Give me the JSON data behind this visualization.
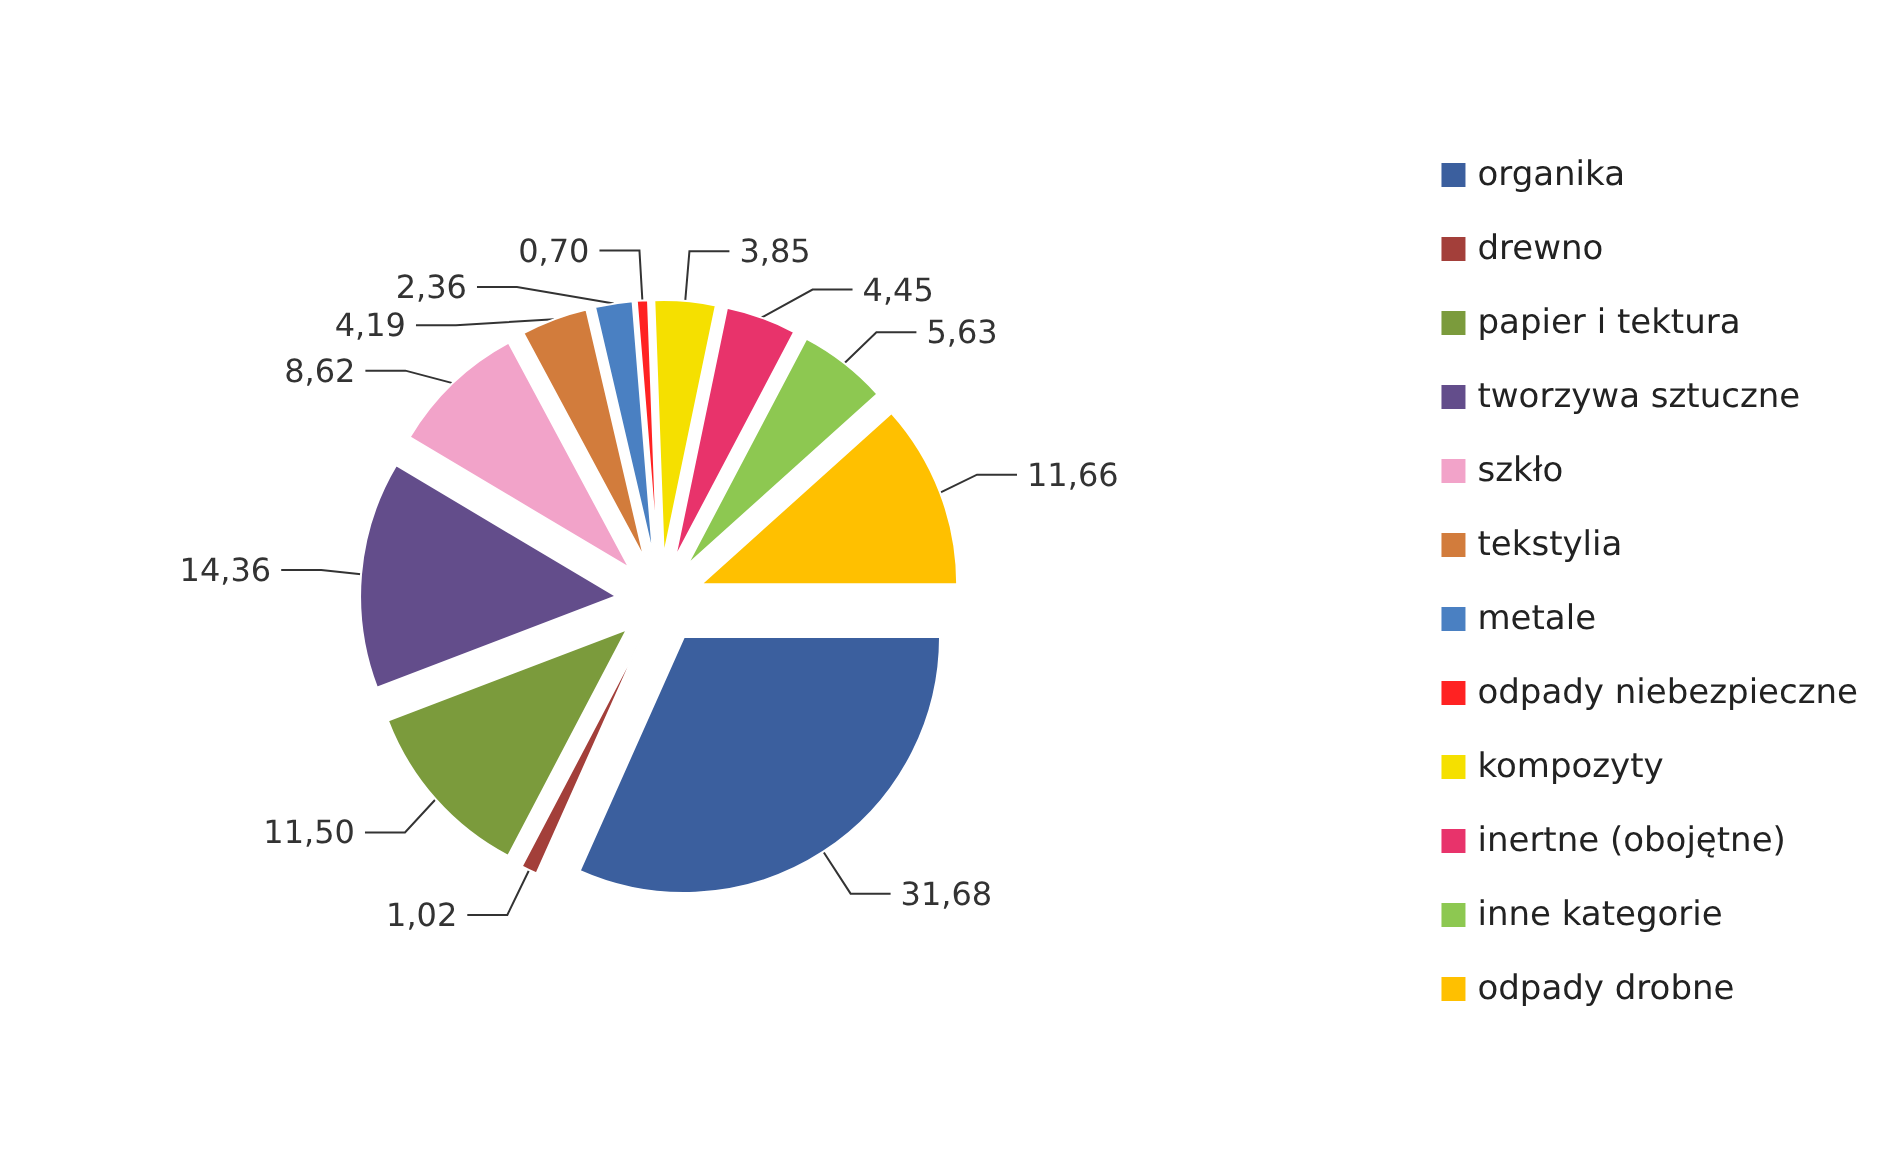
{
  "chart_data": {
    "type": "pie",
    "categories": [
      "organika",
      "drewno",
      "papier i tektura",
      "tworzywa sztuczne",
      "szkło",
      "tekstylia",
      "metale",
      "odpady niebezpieczne",
      "kompozyty",
      "inertne (obojętne)",
      "inne kategorie",
      "odpady drobne"
    ],
    "values": [
      31.68,
      1.02,
      11.5,
      14.36,
      8.62,
      4.19,
      2.36,
      0.7,
      3.85,
      4.45,
      5.63,
      11.66
    ],
    "value_labels": [
      "31,68",
      "1,02",
      "11,50",
      "14,36",
      "8,62",
      "4,19",
      "2,36",
      "0,70",
      "3,85",
      "4,45",
      "5,63",
      "11,66"
    ],
    "colors": [
      "#3b5f9e",
      "#a33f3a",
      "#7b9b3c",
      "#634d8b",
      "#f2a3c9",
      "#d27c3c",
      "#4a80c2",
      "#ff2222",
      "#f5e000",
      "#e8336b",
      "#8dc851",
      "#ffc000"
    ],
    "legend": "right"
  }
}
